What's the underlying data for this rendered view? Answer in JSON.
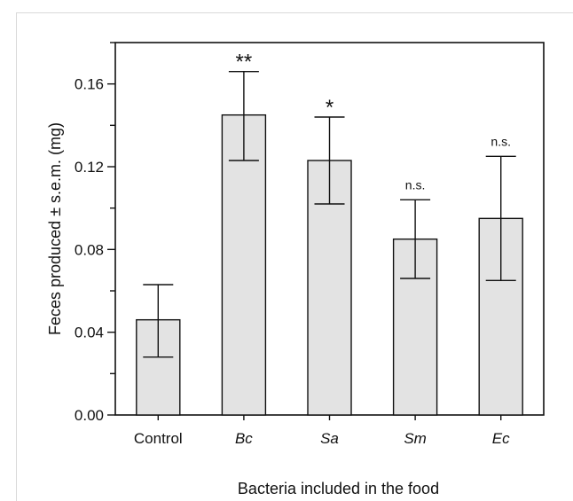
{
  "chart_data": {
    "type": "bar",
    "title": "",
    "xlabel": "Bacteria included in the food",
    "ylabel": "Feces produced ± s.e.m. (mg)",
    "ylim": [
      0,
      0.18
    ],
    "yticks": [
      "0.00",
      "0.04",
      "0.08",
      "0.12",
      "0.16"
    ],
    "ytick_values": [
      0,
      0.04,
      0.08,
      0.12,
      0.16
    ],
    "categories": [
      "Control",
      "Bc",
      "Sa",
      "Sm",
      "Ec"
    ],
    "italic_categories": [
      false,
      true,
      true,
      true,
      true
    ],
    "values": [
      0.046,
      0.145,
      0.123,
      0.085,
      0.095
    ],
    "error_low": [
      0.028,
      0.123,
      0.102,
      0.066,
      0.065
    ],
    "error_high": [
      0.063,
      0.166,
      0.144,
      0.104,
      0.125
    ],
    "significance": [
      "",
      "**",
      "*",
      "n.s.",
      "n.s."
    ],
    "bar_color": "#e3e3e3",
    "edge_color": "#111111",
    "grid": false,
    "legend": "none"
  }
}
